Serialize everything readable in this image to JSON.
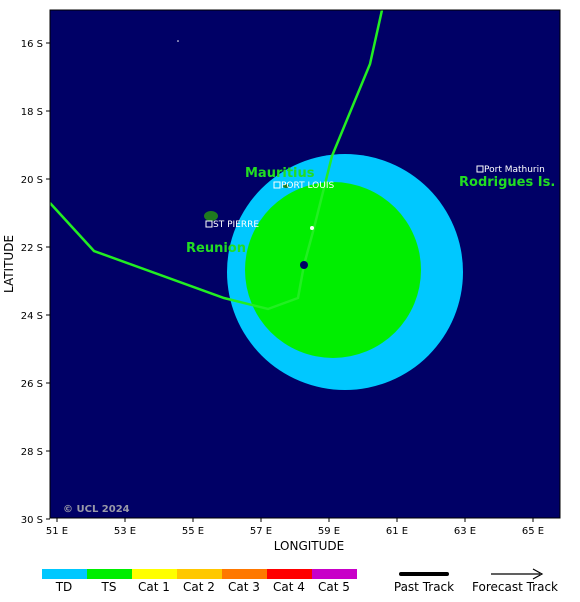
{
  "map": {
    "x_axis_title": "LONGITUDE",
    "y_axis_title": "LATITUDE",
    "x_ticks": [
      "51 E",
      "53 E",
      "55 E",
      "57 E",
      "59 E",
      "61 E",
      "63 E",
      "65 E"
    ],
    "y_ticks": [
      "16 S",
      "18 S",
      "20 S",
      "22 S",
      "24 S",
      "26 S",
      "28 S",
      "30 S"
    ],
    "copyright": "© UCL 2024",
    "colors": {
      "ocean": "#000066",
      "wind_td": "#00c8ff",
      "wind_ts": "#00ee00",
      "track": "#22ee22",
      "land": "#1f7a1f"
    }
  },
  "places": {
    "mauritius": "Mauritius",
    "reunion": "Reunion",
    "rodrigues": "Rodrigues Is."
  },
  "cities": {
    "port_louis": "PORT LOUIS",
    "st_pierre": "ST PIERRE",
    "port_mathurin": "Port Mathurin"
  },
  "legend": {
    "categories": [
      {
        "label": "TD",
        "color": "#00c8ff"
      },
      {
        "label": "TS",
        "color": "#00ee00"
      },
      {
        "label": "Cat 1",
        "color": "#ffff00"
      },
      {
        "label": "Cat 2",
        "color": "#ffc800"
      },
      {
        "label": "Cat 3",
        "color": "#ff7800"
      },
      {
        "label": "Cat 4",
        "color": "#ff0000"
      },
      {
        "label": "Cat 5",
        "color": "#c800c8"
      }
    ],
    "past_track": "Past Track",
    "forecast_track": "Forecast Track"
  }
}
